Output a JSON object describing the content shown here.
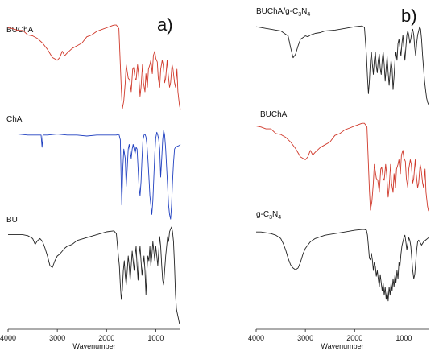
{
  "chart_data": [
    {
      "type": "line",
      "panel_label": "a)",
      "xlabel": "Wavenumber",
      "ylabel": "",
      "xlim": [
        4000,
        500
      ],
      "xticks": [
        4000,
        3000,
        2000,
        1000
      ],
      "grid": false,
      "series": [
        {
          "name": "BUChA",
          "color": "#d0392b",
          "x": [
            4000,
            3900,
            3800,
            3700,
            3600,
            3500,
            3400,
            3300,
            3200,
            3100,
            3000,
            2950,
            2900,
            2850,
            2800,
            2700,
            2600,
            2500,
            2400,
            2300,
            2200,
            2100,
            2000,
            1900,
            1850,
            1800,
            1750,
            1700,
            1680,
            1650,
            1620,
            1600,
            1560,
            1530,
            1500,
            1470,
            1450,
            1420,
            1400,
            1370,
            1350,
            1320,
            1300,
            1270,
            1250,
            1220,
            1200,
            1170,
            1150,
            1120,
            1100,
            1070,
            1050,
            1020,
            1000,
            970,
            950,
            920,
            900,
            870,
            850,
            820,
            800,
            770,
            750,
            720,
            700,
            670,
            650,
            620,
            600,
            570,
            550,
            520,
            500
          ],
          "y": [
            96,
            95,
            93,
            93,
            88,
            87,
            84,
            79,
            72,
            63,
            60,
            63,
            70,
            65,
            68,
            73,
            76,
            79,
            86,
            88,
            92,
            94,
            96,
            98,
            99,
            99,
            95,
            28,
            6,
            15,
            35,
            55,
            40,
            38,
            25,
            50,
            52,
            40,
            38,
            55,
            45,
            20,
            30,
            55,
            35,
            25,
            45,
            30,
            50,
            55,
            60,
            45,
            65,
            70,
            62,
            58,
            40,
            30,
            50,
            60,
            55,
            35,
            40,
            60,
            45,
            30,
            35,
            55,
            50,
            35,
            30,
            50,
            25,
            10,
            5
          ]
        },
        {
          "name": "ChA",
          "color": "#2040c0",
          "x": [
            4000,
            3800,
            3600,
            3400,
            3330,
            3310,
            3290,
            3200,
            3000,
            2800,
            2600,
            2400,
            2200,
            2000,
            1800,
            1750,
            1720,
            1700,
            1690,
            1670,
            1650,
            1620,
            1600,
            1580,
            1560,
            1540,
            1520,
            1500,
            1480,
            1460,
            1440,
            1420,
            1400,
            1380,
            1360,
            1340,
            1320,
            1300,
            1280,
            1260,
            1240,
            1220,
            1200,
            1180,
            1160,
            1140,
            1120,
            1100,
            1080,
            1060,
            1040,
            1020,
            1000,
            980,
            960,
            940,
            920,
            900,
            880,
            860,
            840,
            820,
            800,
            780,
            760,
            740,
            720,
            700,
            680,
            660,
            640,
            620,
            600,
            560,
            520,
            500
          ],
          "y": [
            96,
            96,
            95,
            95,
            95,
            82,
            95,
            95,
            96,
            95,
            95,
            94,
            95,
            95,
            95,
            96,
            90,
            40,
            20,
            60,
            80,
            70,
            40,
            60,
            80,
            85,
            78,
            70,
            80,
            85,
            80,
            75,
            82,
            80,
            60,
            40,
            30,
            45,
            70,
            90,
            95,
            96,
            93,
            85,
            70,
            50,
            30,
            20,
            10,
            25,
            50,
            75,
            92,
            98,
            95,
            90,
            80,
            50,
            70,
            90,
            100,
            95,
            80,
            60,
            40,
            20,
            10,
            5,
            20,
            45,
            65,
            80,
            82,
            83,
            84,
            85
          ]
        },
        {
          "name": "BU",
          "color": "#222222",
          "x": [
            4000,
            3900,
            3800,
            3700,
            3600,
            3500,
            3450,
            3400,
            3350,
            3300,
            3250,
            3200,
            3150,
            3100,
            3050,
            3000,
            2950,
            2900,
            2850,
            2800,
            2700,
            2600,
            2400,
            2200,
            2000,
            1850,
            1800,
            1760,
            1740,
            1720,
            1700,
            1680,
            1660,
            1640,
            1620,
            1600,
            1580,
            1560,
            1540,
            1520,
            1500,
            1480,
            1460,
            1440,
            1420,
            1400,
            1380,
            1360,
            1340,
            1320,
            1300,
            1280,
            1260,
            1240,
            1220,
            1200,
            1180,
            1160,
            1140,
            1120,
            1100,
            1080,
            1060,
            1040,
            1020,
            1000,
            980,
            960,
            940,
            920,
            900,
            880,
            860,
            840,
            820,
            800,
            780,
            760,
            740,
            720,
            700,
            680,
            660,
            640,
            620,
            600,
            580,
            560,
            540,
            520,
            500
          ],
          "y": [
            92,
            92,
            92,
            92,
            91,
            88,
            82,
            86,
            88,
            85,
            78,
            70,
            60,
            58,
            65,
            70,
            72,
            75,
            78,
            80,
            82,
            86,
            89,
            92,
            95,
            96,
            93,
            70,
            60,
            40,
            25,
            35,
            55,
            65,
            50,
            40,
            55,
            70,
            60,
            45,
            60,
            75,
            65,
            55,
            70,
            80,
            60,
            45,
            70,
            80,
            65,
            50,
            60,
            70,
            55,
            30,
            55,
            70,
            65,
            80,
            60,
            70,
            85,
            75,
            65,
            80,
            70,
            60,
            75,
            90,
            80,
            60,
            45,
            40,
            55,
            70,
            80,
            90,
            85,
            95,
            98,
            100,
            95,
            85,
            60,
            30,
            15,
            10,
            5,
            0,
            0
          ]
        }
      ]
    },
    {
      "type": "line",
      "panel_label": "b)",
      "xlabel": "Wavenumber",
      "ylabel": "",
      "xlim": [
        4000,
        500
      ],
      "xticks": [
        4000,
        3000,
        2000,
        1000
      ],
      "grid": false,
      "series": [
        {
          "name": "BUChA/g-C₃N₄",
          "label_main": "BUChA/g-C",
          "label_sub1": "3",
          "label_mid": "N",
          "label_sub2": "4",
          "color": "#222222",
          "x": [
            4000,
            3900,
            3800,
            3700,
            3600,
            3500,
            3450,
            3400,
            3350,
            3300,
            3250,
            3200,
            3150,
            3100,
            3050,
            3000,
            2950,
            2900,
            2850,
            2800,
            2700,
            2600,
            2400,
            2200,
            2000,
            1850,
            1800,
            1760,
            1740,
            1720,
            1700,
            1680,
            1660,
            1640,
            1620,
            1600,
            1580,
            1560,
            1540,
            1520,
            1500,
            1480,
            1460,
            1440,
            1420,
            1400,
            1380,
            1360,
            1340,
            1320,
            1300,
            1280,
            1260,
            1240,
            1220,
            1200,
            1180,
            1160,
            1140,
            1120,
            1100,
            1080,
            1060,
            1040,
            1020,
            1000,
            980,
            960,
            940,
            920,
            900,
            880,
            860,
            840,
            820,
            800,
            780,
            760,
            740,
            720,
            700,
            680,
            660,
            640,
            620,
            600,
            580,
            560,
            540,
            520,
            500
          ],
          "y": [
            95,
            94,
            93,
            92,
            91,
            90,
            88,
            86,
            84,
            70,
            58,
            62,
            72,
            80,
            82,
            84,
            83,
            85,
            86,
            87,
            88,
            90,
            91,
            93,
            95,
            96,
            94,
            60,
            35,
            15,
            30,
            55,
            65,
            50,
            38,
            55,
            65,
            48,
            40,
            55,
            62,
            45,
            38,
            55,
            65,
            50,
            30,
            45,
            60,
            40,
            25,
            40,
            55,
            45,
            20,
            35,
            55,
            65,
            55,
            75,
            80,
            70,
            60,
            75,
            85,
            70,
            55,
            70,
            85,
            90,
            85,
            75,
            80,
            88,
            92,
            85,
            70,
            60,
            75,
            85,
            90,
            95,
            92,
            80,
            60,
            45,
            30,
            20,
            10,
            5,
            2
          ]
        },
        {
          "name": "BUChA",
          "color": "#d0392b",
          "x": [
            4000,
            3900,
            3800,
            3700,
            3600,
            3500,
            3400,
            3300,
            3200,
            3100,
            3000,
            2950,
            2900,
            2850,
            2800,
            2700,
            2600,
            2500,
            2400,
            2300,
            2200,
            2100,
            2000,
            1900,
            1850,
            1800,
            1750,
            1700,
            1680,
            1650,
            1620,
            1600,
            1560,
            1530,
            1500,
            1470,
            1450,
            1420,
            1400,
            1370,
            1350,
            1320,
            1300,
            1270,
            1250,
            1220,
            1200,
            1170,
            1150,
            1120,
            1100,
            1070,
            1050,
            1020,
            1000,
            970,
            950,
            920,
            900,
            870,
            850,
            820,
            800,
            770,
            750,
            720,
            700,
            670,
            650,
            620,
            600,
            570,
            550,
            520,
            500
          ],
          "y": [
            96,
            95,
            93,
            93,
            88,
            87,
            84,
            79,
            72,
            63,
            60,
            63,
            70,
            65,
            68,
            73,
            76,
            79,
            86,
            88,
            92,
            94,
            96,
            98,
            99,
            99,
            95,
            28,
            6,
            15,
            35,
            55,
            40,
            38,
            25,
            50,
            52,
            40,
            38,
            55,
            45,
            20,
            30,
            55,
            35,
            25,
            45,
            30,
            50,
            55,
            60,
            45,
            65,
            70,
            62,
            58,
            40,
            30,
            50,
            60,
            55,
            35,
            40,
            60,
            45,
            30,
            35,
            55,
            50,
            35,
            30,
            50,
            25,
            10,
            5
          ]
        },
        {
          "name": "g-C₃N₄",
          "label_main": "g-C",
          "label_sub1": "3",
          "label_mid": "N",
          "label_sub2": "4",
          "color": "#222222",
          "x": [
            4000,
            3900,
            3800,
            3700,
            3600,
            3500,
            3450,
            3400,
            3350,
            3300,
            3250,
            3200,
            3150,
            3100,
            3050,
            3000,
            2900,
            2800,
            2600,
            2400,
            2200,
            2000,
            1850,
            1800,
            1760,
            1740,
            1720,
            1700,
            1680,
            1660,
            1640,
            1620,
            1600,
            1580,
            1560,
            1540,
            1520,
            1500,
            1480,
            1460,
            1440,
            1420,
            1400,
            1380,
            1360,
            1340,
            1320,
            1300,
            1280,
            1260,
            1240,
            1220,
            1200,
            1180,
            1160,
            1140,
            1120,
            1100,
            1080,
            1060,
            1040,
            1020,
            1000,
            980,
            960,
            940,
            920,
            900,
            880,
            860,
            840,
            820,
            800,
            780,
            760,
            740,
            720,
            700,
            680,
            660,
            640,
            620,
            600,
            560,
            520,
            500
          ],
          "y": [
            92,
            92,
            91,
            90,
            88,
            84,
            78,
            70,
            60,
            52,
            48,
            46,
            48,
            55,
            65,
            72,
            80,
            84,
            88,
            90,
            92,
            94,
            95,
            95,
            94,
            88,
            75,
            60,
            58,
            66,
            58,
            45,
            55,
            50,
            38,
            45,
            35,
            25,
            40,
            30,
            20,
            30,
            15,
            25,
            10,
            20,
            8,
            25,
            15,
            30,
            20,
            35,
            25,
            40,
            30,
            45,
            35,
            55,
            50,
            65,
            75,
            80,
            85,
            88,
            80,
            70,
            78,
            85,
            82,
            75,
            60,
            45,
            35,
            40,
            55,
            70,
            80,
            82,
            80,
            78,
            76,
            78,
            80,
            82,
            84,
            85
          ]
        }
      ]
    }
  ]
}
